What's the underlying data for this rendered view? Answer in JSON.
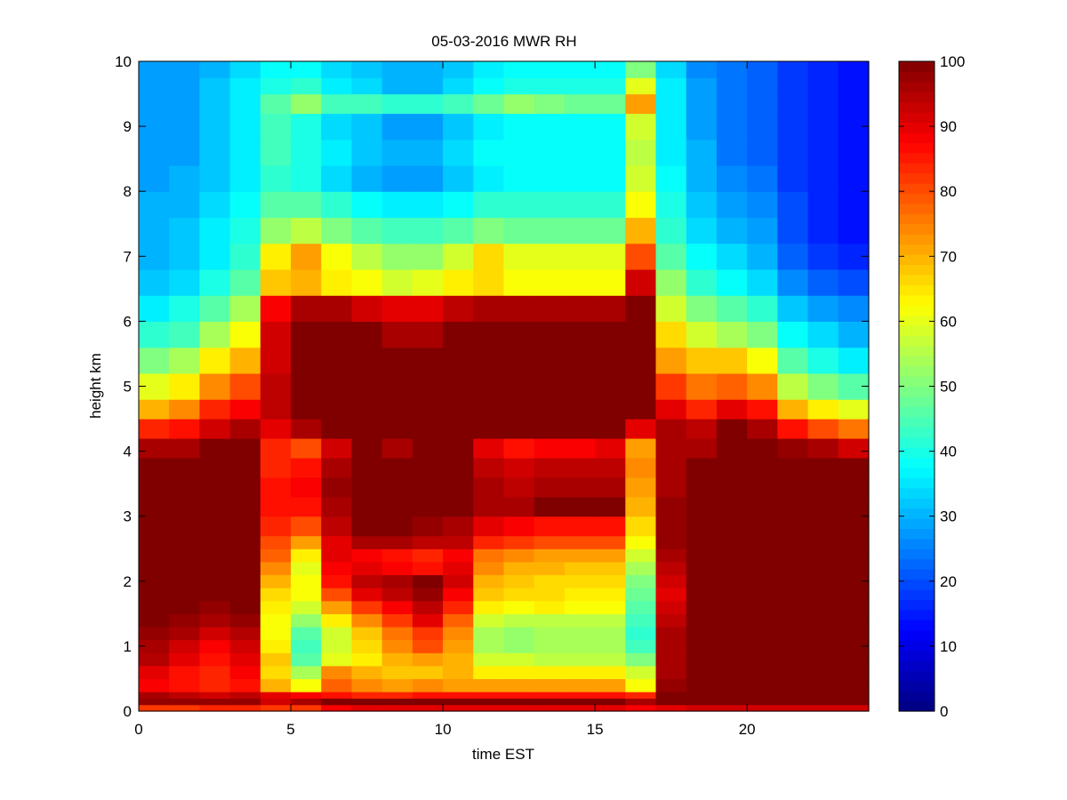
{
  "chart_data": {
    "type": "heatmap",
    "title": "05-03-2016 MWR RH",
    "xlabel": "time EST",
    "ylabel": "height km",
    "xlim": [
      0,
      24
    ],
    "ylim": [
      0,
      10
    ],
    "xticks": [
      "0",
      "5",
      "10",
      "15",
      "20"
    ],
    "yticks": [
      "0",
      "1",
      "2",
      "3",
      "4",
      "5",
      "6",
      "7",
      "8",
      "9",
      "10"
    ],
    "colorbar": {
      "min": 0,
      "max": 100,
      "ticks": [
        "0",
        "10",
        "20",
        "30",
        "40",
        "50",
        "60",
        "70",
        "80",
        "90",
        "100"
      ],
      "colormap": "jet"
    },
    "time_hours": [
      0,
      1,
      2,
      3,
      4,
      5,
      6,
      7,
      8,
      9,
      10,
      11,
      12,
      13,
      14,
      15,
      16,
      17,
      18,
      19,
      20,
      21,
      22,
      23
    ],
    "height_km": [
      0.0,
      0.1,
      0.2,
      0.3,
      0.5,
      0.7,
      0.9,
      1.1,
      1.3,
      1.5,
      1.7,
      1.9,
      2.1,
      2.3,
      2.5,
      2.7,
      3.0,
      3.3,
      3.6,
      3.9,
      4.2,
      4.5,
      4.8,
      5.2,
      5.6,
      6.0,
      6.4,
      6.8,
      7.2,
      7.6,
      8.0,
      8.4,
      8.8,
      9.2,
      9.5,
      9.75
    ],
    "rh_rows": [
      [
        82,
        82,
        84,
        84,
        82,
        82,
        88,
        90,
        90,
        90,
        90,
        90,
        90,
        90,
        90,
        90,
        88,
        90,
        92,
        92,
        92,
        92,
        92,
        92
      ],
      [
        98,
        98,
        98,
        98,
        92,
        96,
        100,
        100,
        100,
        100,
        100,
        100,
        100,
        100,
        100,
        100,
        96,
        100,
        100,
        100,
        100,
        100,
        100,
        100
      ],
      [
        96,
        94,
        92,
        94,
        90,
        88,
        86,
        84,
        84,
        86,
        86,
        86,
        86,
        86,
        86,
        86,
        84,
        100,
        100,
        100,
        100,
        100,
        100,
        100
      ],
      [
        88,
        86,
        84,
        86,
        70,
        62,
        78,
        74,
        72,
        74,
        72,
        72,
        72,
        72,
        72,
        72,
        62,
        98,
        100,
        100,
        100,
        100,
        100,
        100
      ],
      [
        90,
        86,
        84,
        88,
        66,
        54,
        74,
        70,
        68,
        68,
        70,
        64,
        64,
        64,
        64,
        64,
        58,
        96,
        100,
        100,
        100,
        100,
        100,
        100
      ],
      [
        95,
        90,
        86,
        90,
        68,
        46,
        60,
        64,
        70,
        72,
        70,
        58,
        58,
        56,
        56,
        56,
        50,
        96,
        100,
        100,
        100,
        100,
        100,
        100
      ],
      [
        96,
        92,
        88,
        92,
        64,
        44,
        58,
        66,
        74,
        80,
        72,
        54,
        52,
        54,
        54,
        54,
        44,
        96,
        100,
        100,
        100,
        100,
        100,
        100
      ],
      [
        98,
        96,
        92,
        95,
        62,
        46,
        58,
        68,
        76,
        82,
        74,
        54,
        52,
        54,
        54,
        54,
        42,
        96,
        100,
        100,
        100,
        100,
        100,
        100
      ],
      [
        100,
        98,
        96,
        98,
        62,
        52,
        64,
        74,
        82,
        90,
        78,
        58,
        56,
        56,
        56,
        56,
        44,
        94,
        100,
        100,
        100,
        100,
        100,
        100
      ],
      [
        100,
        100,
        98,
        100,
        64,
        58,
        72,
        82,
        88,
        94,
        84,
        64,
        62,
        64,
        62,
        62,
        46,
        92,
        100,
        100,
        100,
        100,
        100,
        100
      ],
      [
        100,
        100,
        100,
        100,
        66,
        62,
        80,
        90,
        94,
        98,
        88,
        68,
        66,
        66,
        64,
        64,
        48,
        90,
        100,
        100,
        100,
        100,
        100,
        100
      ],
      [
        100,
        100,
        100,
        100,
        70,
        62,
        86,
        94,
        96,
        100,
        92,
        70,
        68,
        66,
        66,
        66,
        50,
        92,
        100,
        100,
        100,
        100,
        100,
        100
      ],
      [
        100,
        100,
        100,
        100,
        74,
        60,
        88,
        90,
        88,
        86,
        90,
        74,
        70,
        70,
        68,
        68,
        54,
        94,
        100,
        100,
        100,
        100,
        100,
        100
      ],
      [
        100,
        100,
        100,
        100,
        78,
        64,
        90,
        88,
        86,
        84,
        88,
        76,
        74,
        72,
        72,
        72,
        58,
        96,
        100,
        100,
        100,
        100,
        100,
        100
      ],
      [
        100,
        100,
        100,
        100,
        80,
        72,
        90,
        96,
        96,
        94,
        94,
        84,
        82,
        80,
        80,
        80,
        62,
        98,
        100,
        100,
        100,
        100,
        100,
        100
      ],
      [
        100,
        100,
        100,
        100,
        84,
        80,
        94,
        100,
        100,
        98,
        96,
        90,
        88,
        86,
        86,
        86,
        66,
        98,
        100,
        100,
        100,
        100,
        100,
        100
      ],
      [
        100,
        100,
        100,
        100,
        86,
        86,
        96,
        100,
        100,
        100,
        100,
        96,
        96,
        100,
        100,
        100,
        70,
        98,
        100,
        100,
        100,
        100,
        100,
        100
      ],
      [
        100,
        100,
        100,
        100,
        86,
        88,
        98,
        100,
        100,
        100,
        100,
        96,
        94,
        96,
        96,
        96,
        72,
        96,
        100,
        100,
        100,
        100,
        100,
        100
      ],
      [
        100,
        100,
        100,
        100,
        84,
        86,
        96,
        100,
        100,
        100,
        100,
        94,
        92,
        94,
        94,
        94,
        74,
        96,
        100,
        100,
        100,
        100,
        100,
        100
      ],
      [
        96,
        96,
        100,
        100,
        84,
        80,
        92,
        100,
        96,
        100,
        100,
        90,
        86,
        88,
        88,
        90,
        72,
        96,
        96,
        100,
        100,
        98,
        96,
        92
      ],
      [
        84,
        86,
        92,
        96,
        90,
        96,
        100,
        100,
        100,
        100,
        100,
        100,
        100,
        100,
        100,
        100,
        90,
        96,
        94,
        100,
        96,
        86,
        80,
        76
      ],
      [
        70,
        74,
        84,
        88,
        94,
        100,
        100,
        100,
        100,
        100,
        100,
        100,
        100,
        100,
        100,
        100,
        100,
        90,
        84,
        90,
        86,
        70,
        64,
        60
      ],
      [
        60,
        64,
        74,
        80,
        94,
        100,
        100,
        100,
        100,
        100,
        100,
        100,
        100,
        100,
        100,
        100,
        100,
        82,
        76,
        78,
        74,
        56,
        50,
        46
      ],
      [
        50,
        54,
        64,
        70,
        92,
        100,
        100,
        100,
        100,
        100,
        100,
        100,
        100,
        100,
        100,
        100,
        100,
        72,
        68,
        68,
        62,
        46,
        40,
        36
      ],
      [
        42,
        44,
        54,
        62,
        92,
        100,
        100,
        100,
        96,
        96,
        100,
        100,
        100,
        100,
        100,
        100,
        100,
        66,
        58,
        54,
        50,
        38,
        34,
        30
      ],
      [
        36,
        40,
        46,
        54,
        88,
        96,
        96,
        92,
        90,
        90,
        94,
        96,
        96,
        96,
        96,
        96,
        100,
        58,
        50,
        46,
        42,
        32,
        28,
        26
      ],
      [
        32,
        34,
        40,
        46,
        68,
        70,
        64,
        62,
        58,
        60,
        64,
        66,
        62,
        62,
        62,
        62,
        92,
        52,
        42,
        38,
        34,
        26,
        22,
        20
      ],
      [
        30,
        32,
        36,
        42,
        64,
        72,
        62,
        56,
        52,
        52,
        58,
        66,
        60,
        60,
        60,
        60,
        80,
        46,
        38,
        34,
        30,
        22,
        18,
        16
      ],
      [
        30,
        32,
        36,
        40,
        52,
        56,
        50,
        46,
        44,
        44,
        46,
        50,
        48,
        48,
        48,
        48,
        70,
        42,
        34,
        30,
        28,
        20,
        16,
        14
      ],
      [
        30,
        30,
        34,
        38,
        46,
        46,
        42,
        38,
        36,
        36,
        38,
        42,
        42,
        42,
        42,
        42,
        62,
        40,
        32,
        28,
        26,
        20,
        16,
        14
      ],
      [
        28,
        30,
        32,
        36,
        42,
        40,
        34,
        30,
        28,
        28,
        32,
        36,
        38,
        38,
        38,
        38,
        58,
        38,
        30,
        26,
        24,
        18,
        16,
        14
      ],
      [
        28,
        28,
        32,
        36,
        44,
        40,
        36,
        32,
        30,
        30,
        34,
        38,
        38,
        38,
        38,
        38,
        56,
        36,
        30,
        24,
        22,
        18,
        16,
        14
      ],
      [
        28,
        28,
        32,
        36,
        44,
        40,
        34,
        32,
        28,
        28,
        32,
        36,
        38,
        38,
        38,
        38,
        58,
        36,
        28,
        24,
        22,
        18,
        16,
        14
      ],
      [
        28,
        28,
        32,
        36,
        46,
        52,
        44,
        44,
        42,
        42,
        44,
        48,
        52,
        50,
        48,
        48,
        72,
        36,
        28,
        24,
        22,
        18,
        16,
        14
      ],
      [
        28,
        28,
        32,
        36,
        40,
        42,
        36,
        34,
        30,
        30,
        34,
        38,
        40,
        40,
        40,
        40,
        60,
        36,
        28,
        24,
        22,
        18,
        16,
        14
      ],
      [
        28,
        28,
        30,
        34,
        38,
        38,
        34,
        32,
        30,
        30,
        32,
        36,
        38,
        38,
        38,
        38,
        50,
        34,
        26,
        24,
        22,
        18,
        16,
        14
      ]
    ]
  }
}
